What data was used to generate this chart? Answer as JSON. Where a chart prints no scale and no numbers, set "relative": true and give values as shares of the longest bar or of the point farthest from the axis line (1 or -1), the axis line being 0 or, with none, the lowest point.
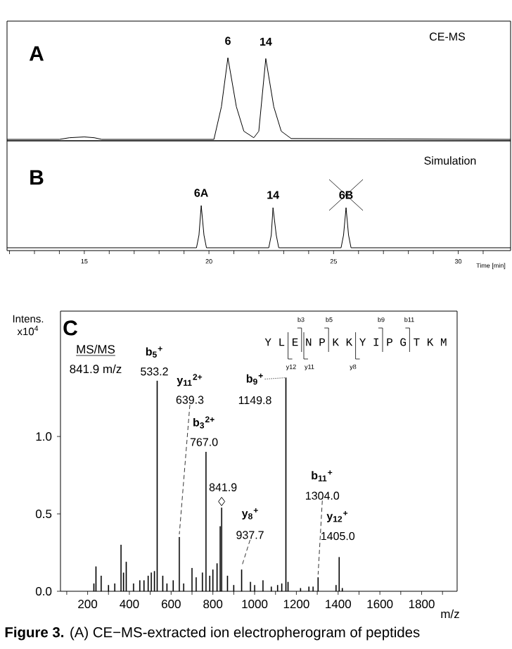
{
  "chart_data": [
    {
      "type": "line",
      "relative": true,
      "color": "#000000",
      "tick_labels": false,
      "x": [
        11.9,
        14.0,
        14.4,
        15.0,
        15.4,
        15.7,
        20.2,
        20.5,
        20.76,
        21.1,
        21.4,
        21.8,
        22.0,
        22.28,
        22.6,
        22.9,
        23.3,
        32.1
      ],
      "values": [
        0,
        0,
        0.02,
        0.03,
        0.02,
        0,
        0,
        0.4,
        1,
        0.4,
        0.1,
        0.02,
        0.1,
        0.99,
        0.4,
        0.1,
        0.01,
        0
      ],
      "xlim": [
        11.9,
        32.1
      ],
      "annotations": [
        "A",
        "CE-MS",
        {
          "text": "6",
          "x": 20.76,
          "y": 1
        },
        {
          "text": "14",
          "x": 22.28,
          "y": 0.99
        }
      ]
    },
    {
      "type": "line",
      "relative": true,
      "color": "#000000",
      "tick_labels": "x",
      "xlabel": "Time [min]",
      "x": [
        11.9,
        19.5,
        19.6,
        19.69,
        19.8,
        19.9,
        22.4,
        22.5,
        22.57,
        22.7,
        22.8,
        25.3,
        25.4,
        25.5,
        25.6,
        25.7,
        32.1
      ],
      "values": [
        0,
        0,
        0.3,
        1,
        0.3,
        0,
        0,
        0.3,
        0.95,
        0.3,
        0,
        0,
        0.3,
        0.95,
        0.3,
        0,
        0
      ],
      "xlim": [
        11.9,
        32.1
      ],
      "xticks": [
        {
          "value": 12,
          "label": null
        },
        {
          "value": 13,
          "label": null
        },
        {
          "value": 14,
          "label": null
        },
        15,
        {
          "value": 16,
          "label": null
        },
        {
          "value": 17,
          "label": null
        },
        {
          "value": 18,
          "label": null
        },
        {
          "value": 19,
          "label": null
        },
        20,
        {
          "value": 21,
          "label": null
        },
        {
          "value": 22,
          "label": null
        },
        {
          "value": 23,
          "label": null
        },
        {
          "value": 24,
          "label": null
        },
        25,
        {
          "value": 26,
          "label": null
        },
        {
          "value": 27,
          "label": null
        },
        {
          "value": 28,
          "label": null
        },
        {
          "value": 29,
          "label": null
        },
        30,
        {
          "value": 31,
          "label": null
        }
      ],
      "annotations": [
        "B",
        "Simulation",
        {
          "text": "6A",
          "x": 19.69,
          "y": 1
        },
        {
          "text": "14",
          "x": 22.57,
          "y": 0.95
        },
        {
          "text": "6B",
          "x": 25.5,
          "y": 0.95
        }
      ]
    },
    {
      "type": "bar",
      "xlabel": "m/z",
      "ylabel": "Intens. x10$^{4}$",
      "series": [
        {
          "type": "bar",
          "color": "#000000",
          "x": [
            230,
            240,
            265,
            300,
            330,
            360,
            372,
            385,
            420,
            450,
            470,
            490,
            505,
            520,
            533.2,
            560,
            580,
            610,
            639.3,
            660,
            700,
            720,
            750,
            767.0,
            785,
            800,
            820,
            835,
            841.9,
            870,
            900,
            937.7,
            980,
            1000,
            1040,
            1080,
            1110,
            1130,
            1149.8,
            1160,
            1220,
            1260,
            1280,
            1304.0,
            1390,
            1405.0,
            1420
          ],
          "values": [
            0.05,
            0.16,
            0.1,
            0.04,
            0.05,
            0.3,
            0.12,
            0.19,
            0.05,
            0.07,
            0.07,
            0.1,
            0.12,
            0.13,
            1.36,
            0.1,
            0.05,
            0.07,
            0.35,
            0.05,
            0.15,
            0.09,
            0.12,
            0.9,
            0.1,
            0.14,
            0.18,
            0.42,
            0.54,
            0.1,
            0.04,
            0.14,
            0.06,
            0.04,
            0.07,
            0.03,
            0.04,
            0.05,
            1.38,
            0.06,
            0.02,
            0.03,
            0.03,
            0.09,
            0.04,
            0.22,
            0.02
          ]
        },
        {
          "type": "scatter",
          "marker": "diamond",
          "color": "#000000",
          "x": [
            841.9
          ],
          "values": [
            0.58
          ]
        }
      ],
      "xlim": [
        70,
        1970
      ],
      "ylim": [
        0,
        1.81
      ],
      "xticks": [
        {
          "value": 100,
          "label": null
        },
        200,
        {
          "value": 300,
          "label": null
        },
        400,
        {
          "value": 500,
          "label": null
        },
        600,
        {
          "value": 700,
          "label": null
        },
        800,
        {
          "value": 900,
          "label": null
        },
        1000,
        {
          "value": 1100,
          "label": null
        },
        1200,
        {
          "value": 1300,
          "label": null
        },
        1400,
        {
          "value": 1500,
          "label": null
        },
        1600,
        {
          "value": 1700,
          "label": null
        },
        1800,
        {
          "value": 1900,
          "label": null
        }
      ],
      "yticks": [
        {
          "value": 0,
          "label": "0.0"
        },
        {
          "value": 0.5,
          "label": "0.5"
        },
        {
          "value": 1.0,
          "label": "1.0"
        }
      ],
      "annotations": [
        "C",
        "MS/MS",
        "841.9 m/z",
        "Y L E N P K K Y I P G T K M",
        "b3",
        "b5",
        "b9",
        "b11",
        "y12",
        "y11",
        "y8",
        {
          "text": "b$_{5}$$^{+}$",
          "x": 533.2,
          "y": 1.36
        },
        {
          "text": "533.2",
          "x": 533.2,
          "y": 1.36
        },
        {
          "text": "639.3",
          "x": 639.3,
          "y": 0.35
        },
        {
          "text": "b$_{9}$$^{+}$",
          "x": 1149.8,
          "y": 1.38
        },
        {
          "text": "1149.8",
          "x": 1149.8,
          "y": 1.38
        },
        {
          "text": "b$_{3}$$^{2+}$",
          "x": 767.0,
          "y": 0.9
        },
        {
          "text": "767.0",
          "x": 767.0,
          "y": 0.9
        },
        {
          "text": "841.9",
          "x": 841.9,
          "y": 0.54
        },
        {
          "text": "937.7",
          "x": 937.7,
          "y": 0.14
        },
        {
          "text": "1304.0",
          "x": 1304.0,
          "y": 0.09
        },
        {
          "text": "1405.0",
          "x": 1405.0,
          "y": 0.22
        },
        "y$_{11}$$^{2+}$",
        "y$_{8}$$^{+}$",
        "b$_{11}$$^{+}$",
        "y$_{12}$$^{+}$",
        "**Figure 3.** (A) CE−MS-extracted ion electropherogram of peptides"
      ]
    }
  ]
}
